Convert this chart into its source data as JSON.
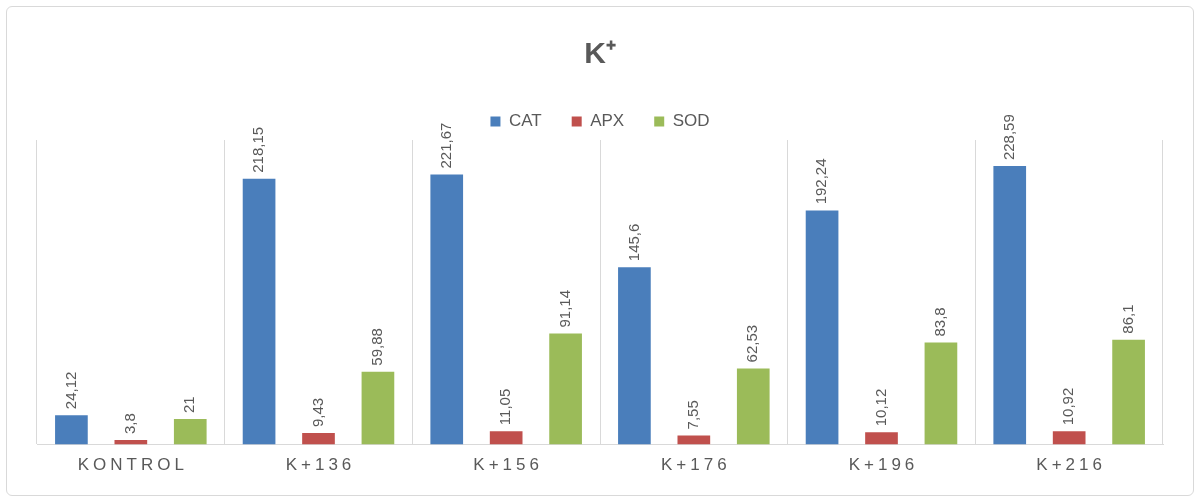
{
  "chart_data": {
    "type": "bar",
    "title": "K⁺",
    "categories": [
      "KONTROL",
      "K+136",
      "K+156",
      "K+176",
      "K+196",
      "K+216"
    ],
    "series": [
      {
        "name": "CAT",
        "color": "#4a7ebb",
        "values": [
          24.12,
          218.15,
          221.67,
          145.6,
          192.24,
          228.59
        ],
        "value_labels": [
          "24,12",
          "218,15",
          "221,67",
          "145,6",
          "192,24",
          "228,59"
        ]
      },
      {
        "name": "APX",
        "color": "#c0504d",
        "values": [
          3.8,
          9.43,
          11.05,
          7.55,
          10.12,
          10.92
        ],
        "value_labels": [
          "3,8",
          "9,43",
          "11,05",
          "7,55",
          "10,12",
          "10,92"
        ]
      },
      {
        "name": "SOD",
        "color": "#9bbb59",
        "values": [
          21,
          59.88,
          91.14,
          62.53,
          83.8,
          86.1
        ],
        "value_labels": [
          "21",
          "59,88",
          "91,14",
          "62,53",
          "83,8",
          "86,1"
        ]
      }
    ],
    "legend": "top",
    "grid": "x"
  }
}
